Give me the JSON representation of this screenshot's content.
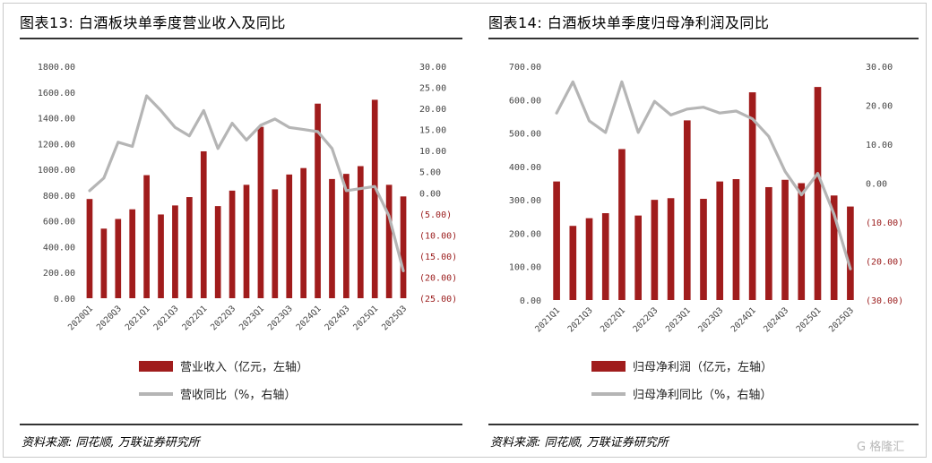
{
  "charts": {
    "left": {
      "title": "图表13:  白酒板块单季度营业收入及同比",
      "source": "资料来源: 同花顺, 万联证券研究所"
    },
    "right": {
      "title": "图表14:  白酒板块单季度归母净利润及同比",
      "source": "资料来源: 同花顺, 万联证券研究所"
    }
  },
  "watermark": "G 格隆汇",
  "chart_data": [
    {
      "type": "bar",
      "categories": [
        "2020Q1",
        "2020Q2",
        "2020Q3",
        "2020Q4",
        "2021Q1",
        "2021Q2",
        "2021Q3",
        "2021Q4",
        "2022Q1",
        "2022Q2",
        "2022Q3",
        "2022Q4",
        "2023Q1",
        "2023Q2",
        "2023Q3",
        "2023Q4",
        "2024Q1",
        "2024Q2",
        "2024Q3",
        "2024Q4",
        "2025Q1",
        "2025Q2",
        "2025Q3"
      ],
      "category_labels": [
        "2020Q1",
        "",
        "2020Q3",
        "",
        "2021Q1",
        "",
        "2021Q3",
        "",
        "2022Q1",
        "",
        "2022Q3",
        "",
        "2023Q1",
        "",
        "2023Q3",
        "",
        "2024Q1",
        "",
        "2024Q3",
        "",
        "2025Q1",
        "",
        "2025Q3"
      ],
      "series": [
        {
          "name": "营业收入（亿元，左轴）",
          "kind": "bar",
          "axis": "left",
          "color": "#a01c1c",
          "values": [
            770,
            540,
            615,
            690,
            955,
            650,
            720,
            785,
            1140,
            715,
            835,
            880,
            1330,
            845,
            960,
            1010,
            1510,
            925,
            965,
            1025,
            1540,
            880,
            790
          ]
        },
        {
          "name": "营收同比（%，右轴）",
          "kind": "line",
          "axis": "right",
          "color": "#b5b5b5",
          "values": [
            0.5,
            3.5,
            12.0,
            11.0,
            23.0,
            19.5,
            15.5,
            13.5,
            19.5,
            10.5,
            16.5,
            12.5,
            16.0,
            17.5,
            15.5,
            15.0,
            14.5,
            10.5,
            0.5,
            1.0,
            1.5,
            -5.5,
            -18.5
          ]
        }
      ],
      "y_left": {
        "min": 0,
        "max": 1800,
        "step": 200,
        "tick_labels": [
          "0.00",
          "200.00",
          "400.00",
          "600.00",
          "800.00",
          "1000.00",
          "1200.00",
          "1400.00",
          "1600.00",
          "1800.00"
        ]
      },
      "y_right": {
        "min": -25,
        "max": 30,
        "step": 5,
        "tick_labels": [
          "(25.00)",
          "(20.00)",
          "(15.00)",
          "(10.00)",
          "(5.00)",
          "0.00",
          "5.00",
          "10.00",
          "15.00",
          "20.00",
          "25.00",
          "30.00"
        ]
      },
      "legend": [
        "营业收入（亿元，左轴）",
        "营收同比（%，右轴）"
      ],
      "grid": false,
      "legend_position": "bottom"
    },
    {
      "type": "bar",
      "categories": [
        "2021Q1",
        "2021Q2",
        "2021Q3",
        "2021Q4",
        "2022Q1",
        "2022Q2",
        "2022Q3",
        "2022Q4",
        "2023Q1",
        "2023Q2",
        "2023Q3",
        "2023Q4",
        "2024Q1",
        "2024Q2",
        "2024Q3",
        "2024Q4",
        "2025Q1",
        "2025Q2",
        "2025Q3"
      ],
      "category_labels": [
        "2021Q1",
        "",
        "2021Q3",
        "",
        "2022Q1",
        "",
        "2022Q3",
        "",
        "2023Q1",
        "",
        "2023Q3",
        "",
        "2024Q1",
        "",
        "2024Q3",
        "",
        "2025Q1",
        "",
        "2025Q3"
      ],
      "series": [
        {
          "name": "归母净利润（亿元，左轴）",
          "kind": "bar",
          "axis": "left",
          "color": "#a01c1c",
          "values": [
            355,
            222,
            245,
            260,
            452,
            253,
            300,
            305,
            538,
            303,
            355,
            362,
            622,
            338,
            360,
            350,
            638,
            313,
            280
          ]
        },
        {
          "name": "归母净利同比（%，右轴）",
          "kind": "line",
          "axis": "right",
          "color": "#b5b5b5",
          "values": [
            18,
            26,
            16,
            13,
            26,
            13,
            21,
            17.5,
            19,
            19.5,
            18,
            18.5,
            16.5,
            12,
            3,
            -3,
            2.5,
            -8,
            -22
          ]
        }
      ],
      "y_left": {
        "min": 0,
        "max": 700,
        "step": 100,
        "tick_labels": [
          "0.00",
          "100.00",
          "200.00",
          "300.00",
          "400.00",
          "500.00",
          "600.00",
          "700.00"
        ]
      },
      "y_right": {
        "min": -30,
        "max": 30,
        "step": 10,
        "tick_labels": [
          "(30.00)",
          "(20.00)",
          "(10.00)",
          "0.00",
          "10.00",
          "20.00",
          "30.00"
        ]
      },
      "legend": [
        "归母净利润（亿元，左轴）",
        "归母净利同比（%，右轴）"
      ],
      "grid": false,
      "legend_position": "bottom"
    }
  ]
}
